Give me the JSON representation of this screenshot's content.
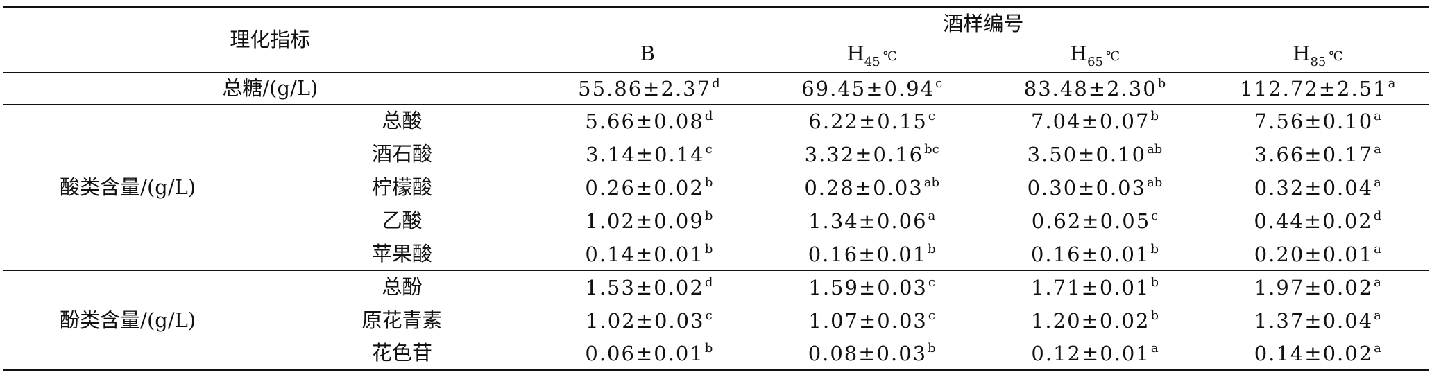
{
  "header": {
    "indicator_label": "理化指标",
    "sample_group_label": "酒样编号",
    "samples": [
      {
        "base": "B",
        "sub": "",
        "unit": ""
      },
      {
        "base": "H",
        "sub": "45",
        "unit": "℃"
      },
      {
        "base": "H",
        "sub": "65",
        "unit": "℃"
      },
      {
        "base": "H",
        "sub": "85",
        "unit": "℃"
      }
    ]
  },
  "total_sugar": {
    "label": "总糖/(g/L)",
    "values": [
      {
        "v": "55.86±2.37",
        "sig": "d"
      },
      {
        "v": "69.45±0.94",
        "sig": "c"
      },
      {
        "v": "83.48±2.30",
        "sig": "b"
      },
      {
        "v": "112.72±2.51",
        "sig": "a"
      }
    ]
  },
  "groups": [
    {
      "label": "酸类含量/(g/L)",
      "rows": [
        {
          "label": "总酸",
          "values": [
            {
              "v": "5.66±0.08",
              "sig": "d"
            },
            {
              "v": "6.22±0.15",
              "sig": "c"
            },
            {
              "v": "7.04±0.07",
              "sig": "b"
            },
            {
              "v": "7.56±0.10",
              "sig": "a"
            }
          ]
        },
        {
          "label": "酒石酸",
          "values": [
            {
              "v": "3.14±0.14",
              "sig": "c"
            },
            {
              "v": "3.32±0.16",
              "sig": "bc"
            },
            {
              "v": "3.50±0.10",
              "sig": "ab"
            },
            {
              "v": "3.66±0.17",
              "sig": "a"
            }
          ]
        },
        {
          "label": "柠檬酸",
          "values": [
            {
              "v": "0.26±0.02",
              "sig": "b"
            },
            {
              "v": "0.28±0.03",
              "sig": "ab"
            },
            {
              "v": "0.30±0.03",
              "sig": "ab"
            },
            {
              "v": "0.32±0.04",
              "sig": "a"
            }
          ]
        },
        {
          "label": "乙酸",
          "values": [
            {
              "v": "1.02±0.09",
              "sig": "b"
            },
            {
              "v": "1.34±0.06",
              "sig": "a"
            },
            {
              "v": "0.62±0.05",
              "sig": "c"
            },
            {
              "v": "0.44±0.02",
              "sig": "d"
            }
          ]
        },
        {
          "label": "苹果酸",
          "values": [
            {
              "v": "0.14±0.01",
              "sig": "b"
            },
            {
              "v": "0.16±0.01",
              "sig": "b"
            },
            {
              "v": "0.16±0.01",
              "sig": "b"
            },
            {
              "v": "0.20±0.01",
              "sig": "a"
            }
          ]
        }
      ]
    },
    {
      "label": "酚类含量/(g/L)",
      "rows": [
        {
          "label": "总酚",
          "values": [
            {
              "v": "1.53±0.02",
              "sig": "d"
            },
            {
              "v": "1.59±0.03",
              "sig": "c"
            },
            {
              "v": "1.71±0.01",
              "sig": "b"
            },
            {
              "v": "1.97±0.02",
              "sig": "a"
            }
          ]
        },
        {
          "label": "原花青素",
          "values": [
            {
              "v": "1.02±0.03",
              "sig": "c"
            },
            {
              "v": "1.07±0.03",
              "sig": "c"
            },
            {
              "v": "1.20±0.02",
              "sig": "b"
            },
            {
              "v": "1.37±0.04",
              "sig": "a"
            }
          ]
        },
        {
          "label": "花色苷",
          "values": [
            {
              "v": "0.06±0.01",
              "sig": "b"
            },
            {
              "v": "0.08±0.03",
              "sig": "b"
            },
            {
              "v": "0.12±0.01",
              "sig": "a"
            },
            {
              "v": "0.14±0.02",
              "sig": "a"
            }
          ]
        }
      ]
    }
  ]
}
